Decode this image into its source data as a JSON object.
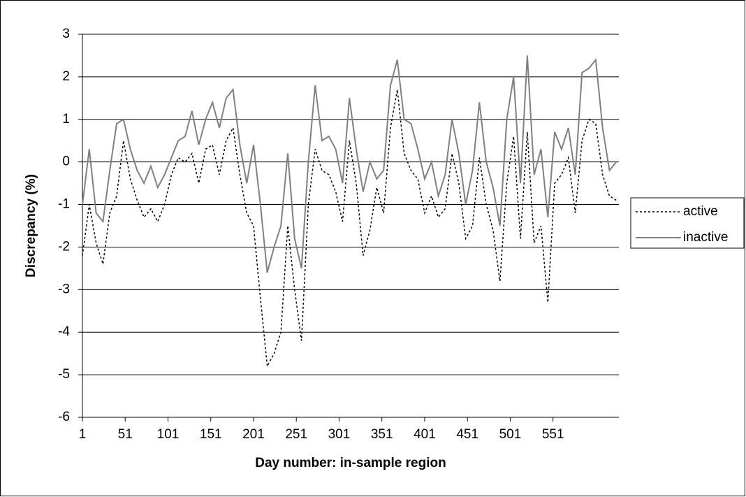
{
  "chart_data": {
    "type": "line",
    "x_label": "Day number: in-sample region",
    "y_label": "Discrepancy (%)",
    "x": [
      1,
      9,
      17,
      25,
      33,
      41,
      49,
      57,
      65,
      73,
      81,
      89,
      97,
      105,
      113,
      121,
      129,
      137,
      145,
      153,
      161,
      169,
      177,
      185,
      193,
      201,
      209,
      217,
      225,
      233,
      241,
      249,
      257,
      265,
      273,
      281,
      289,
      297,
      305,
      313,
      321,
      329,
      337,
      345,
      353,
      361,
      369,
      377,
      385,
      393,
      401,
      409,
      417,
      425,
      433,
      441,
      449,
      457,
      465,
      473,
      481,
      489,
      497,
      505,
      513,
      521,
      529,
      537,
      545,
      553,
      561,
      569,
      577,
      585,
      593,
      601,
      609,
      617,
      625
    ],
    "series": [
      {
        "name": "active",
        "color": "#000000",
        "dash": true,
        "values": [
          -2.2,
          -1.0,
          -1.9,
          -2.4,
          -1.2,
          -0.8,
          0.5,
          -0.4,
          -0.9,
          -1.3,
          -1.1,
          -1.4,
          -1.0,
          -0.3,
          0.1,
          0.0,
          0.2,
          -0.5,
          0.3,
          0.4,
          -0.3,
          0.5,
          0.8,
          -0.3,
          -1.2,
          -1.5,
          -3.2,
          -4.8,
          -4.5,
          -4.0,
          -1.5,
          -3.0,
          -4.2,
          -1.0,
          0.3,
          -0.2,
          -0.3,
          -0.7,
          -1.4,
          0.5,
          -0.5,
          -2.2,
          -1.6,
          -0.6,
          -1.2,
          0.8,
          1.7,
          0.2,
          -0.2,
          -0.4,
          -1.2,
          -0.8,
          -1.3,
          -1.1,
          0.2,
          -0.5,
          -1.8,
          -1.5,
          0.1,
          -1.0,
          -1.6,
          -2.8,
          -0.5,
          0.6,
          -1.8,
          0.7,
          -1.9,
          -1.5,
          -3.3,
          -0.5,
          -0.3,
          0.1,
          -1.2,
          0.5,
          1.0,
          0.9,
          -0.3,
          -0.8,
          -0.9
        ]
      },
      {
        "name": "inactive",
        "color": "#808080",
        "dash": false,
        "values": [
          -1.0,
          0.3,
          -1.2,
          -1.4,
          -0.2,
          0.9,
          1.0,
          0.3,
          -0.2,
          -0.5,
          -0.1,
          -0.6,
          -0.3,
          0.1,
          0.5,
          0.6,
          1.2,
          0.4,
          1.0,
          1.4,
          0.8,
          1.5,
          1.7,
          0.4,
          -0.5,
          0.4,
          -1.0,
          -2.6,
          -2.0,
          -1.5,
          0.2,
          -1.8,
          -2.5,
          0.0,
          1.8,
          0.5,
          0.6,
          0.3,
          -0.5,
          1.5,
          0.3,
          -0.7,
          0.0,
          -0.4,
          -0.2,
          1.8,
          2.4,
          1.0,
          0.9,
          0.3,
          -0.4,
          0.0,
          -0.8,
          -0.3,
          1.0,
          0.2,
          -1.0,
          -0.2,
          1.4,
          0.0,
          -0.6,
          -1.5,
          1.0,
          2.0,
          -0.5,
          2.5,
          -0.3,
          0.3,
          -1.3,
          0.7,
          0.3,
          0.8,
          -0.3,
          2.1,
          2.2,
          2.4,
          0.8,
          -0.2,
          0.0
        ]
      }
    ],
    "xlim": [
      1,
      628
    ],
    "xticks": [
      1,
      51,
      101,
      151,
      201,
      251,
      301,
      351,
      401,
      451,
      501,
      551
    ],
    "ylim": [
      -6,
      3
    ],
    "yticks": [
      -6,
      -5,
      -4,
      -3,
      -2,
      -1,
      0,
      1,
      2,
      3
    ],
    "grid": true,
    "legend": "right"
  }
}
